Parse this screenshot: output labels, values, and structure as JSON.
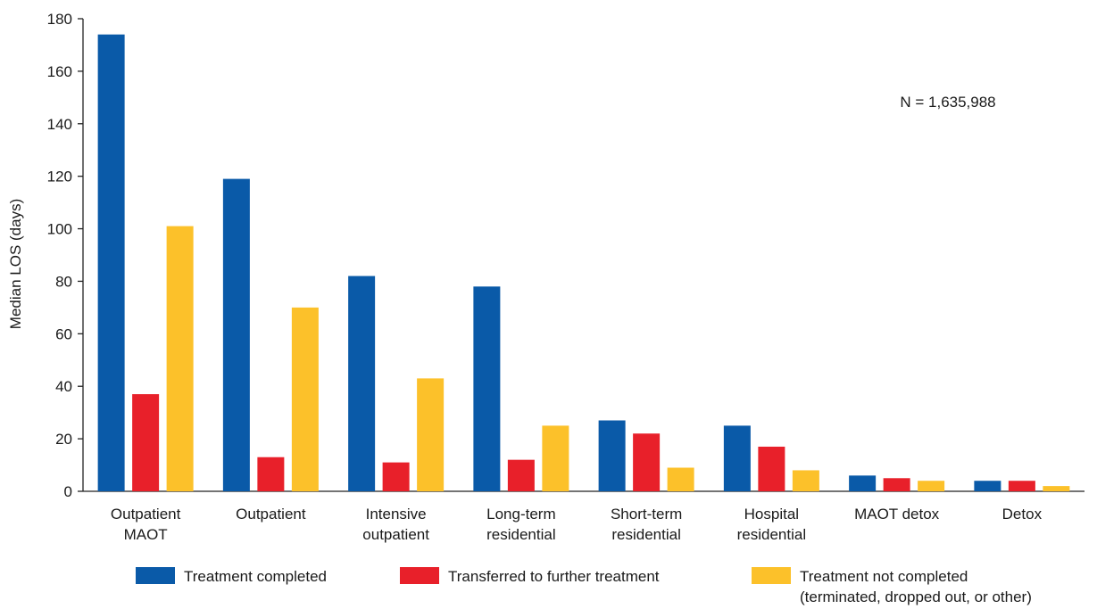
{
  "chart_data": {
    "type": "bar",
    "ylabel": "Median LOS (days)",
    "xlabel": "",
    "ylim": [
      0,
      180
    ],
    "yticks": [
      0,
      20,
      40,
      60,
      80,
      100,
      120,
      140,
      160,
      180
    ],
    "grid": false,
    "categories": [
      [
        "Outpatient",
        "MAOT"
      ],
      [
        "Outpatient"
      ],
      [
        "Intensive",
        "outpatient"
      ],
      [
        "Long-term",
        "residential"
      ],
      [
        "Short-term",
        "residential"
      ],
      [
        "Hospital",
        "residential"
      ],
      [
        "MAOT detox"
      ],
      [
        "Detox"
      ]
    ],
    "series": [
      {
        "name": "Treatment completed",
        "color": "#0a5aa8",
        "values": [
          174,
          119,
          82,
          78,
          27,
          25,
          6,
          4
        ]
      },
      {
        "name": "Transferred to further treatment",
        "color": "#e8202a",
        "values": [
          37,
          13,
          11,
          12,
          22,
          17,
          5,
          4
        ]
      },
      {
        "name": "Treatment not completed\n(terminated, dropped out, or other)",
        "color": "#fcc12a",
        "values": [
          101,
          70,
          43,
          25,
          9,
          8,
          4,
          2
        ]
      }
    ],
    "annotation": "N = 1,635,988",
    "legend_position": "bottom"
  }
}
